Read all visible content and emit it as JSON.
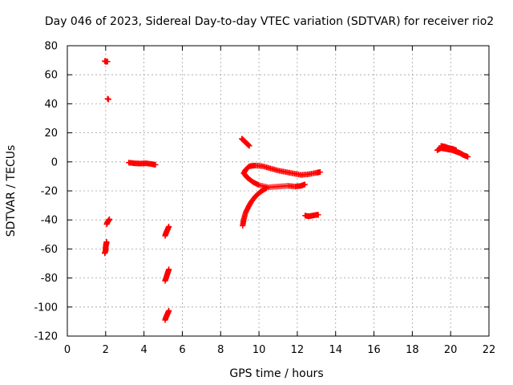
{
  "chart_data": {
    "type": "scatter",
    "title": "Day 046 of 2023, Sidereal Day-to-day VTEC variation (SDTVAR) for receiver rio2",
    "xlabel": "GPS time / hours",
    "ylabel": "SDTVAR / TECUs",
    "xlim": [
      0,
      22
    ],
    "ylim": [
      -120,
      80
    ],
    "xticks": [
      0,
      2,
      4,
      6,
      8,
      10,
      12,
      14,
      16,
      18,
      20,
      22
    ],
    "yticks": [
      -120,
      -100,
      -80,
      -60,
      -40,
      -20,
      0,
      20,
      40,
      60,
      80
    ],
    "grid": true,
    "marker": "plus",
    "series": [
      {
        "color": "#ff0000",
        "segments": [
          {
            "x": [
              1.95,
              2.0,
              2.05,
              2.1
            ],
            "y": [
              69.5,
              69.0,
              69.2,
              69.0
            ]
          },
          {
            "x": [
              2.1,
              2.15
            ],
            "y": [
              43.5,
              43.0
            ]
          },
          {
            "x": [
              2.05,
              2.1,
              2.15,
              2.2
            ],
            "y": [
              -43.0,
              -41.5,
              -40.5,
              -39.5
            ]
          },
          {
            "x": [
              1.95,
              2.0,
              2.0,
              2.02,
              2.04,
              2.05
            ],
            "y": [
              -63.0,
              -61.0,
              -59.0,
              -57.0,
              -56.0,
              -55.0
            ]
          },
          {
            "x": [
              3.2,
              3.5,
              3.8,
              4.1,
              4.4,
              4.6
            ],
            "y": [
              -0.5,
              -1.0,
              -1.2,
              -1.0,
              -1.5,
              -2.0
            ]
          },
          {
            "x": [
              5.1,
              5.15,
              5.2,
              5.25,
              5.3
            ],
            "y": [
              -51.0,
              -49.0,
              -47.5,
              -46.0,
              -44.5
            ]
          },
          {
            "x": [
              5.1,
              5.15,
              5.2,
              5.25,
              5.3
            ],
            "y": [
              -82.0,
              -80.0,
              -78.0,
              -76.0,
              -74.0
            ]
          },
          {
            "x": [
              5.1,
              5.15,
              5.2,
              5.25,
              5.3
            ],
            "y": [
              -109.0,
              -107.0,
              -105.5,
              -104.0,
              -102.5
            ]
          },
          {
            "x": [
              9.1,
              9.2,
              9.3,
              9.4,
              9.5
            ],
            "y": [
              16.0,
              14.8,
              13.5,
              12.2,
              11.0
            ]
          },
          {
            "x": [
              9.2,
              9.3,
              9.5,
              9.8,
              10.2,
              10.6,
              11.0,
              11.4,
              11.8,
              12.2,
              12.6,
              13.0,
              13.2
            ],
            "y": [
              -8.0,
              -5.5,
              -3.0,
              -2.5,
              -3.0,
              -4.5,
              -6.0,
              -7.0,
              -8.0,
              -9.0,
              -8.5,
              -7.5,
              -7.0
            ]
          },
          {
            "x": [
              9.25,
              9.4,
              9.7,
              10.0,
              10.5,
              11.0,
              11.5,
              11.9,
              12.2,
              12.4
            ],
            "y": [
              -8.5,
              -11.0,
              -14.0,
              -16.0,
              -17.5,
              -17.0,
              -16.5,
              -17.0,
              -16.5,
              -15.5
            ]
          },
          {
            "x": [
              9.15,
              9.2,
              9.3,
              9.45,
              9.6,
              9.8,
              10.0,
              10.2,
              10.4
            ],
            "y": [
              -44.0,
              -40.0,
              -35.0,
              -31.0,
              -27.5,
              -24.0,
              -21.5,
              -19.5,
              -18.0
            ]
          },
          {
            "x": [
              12.4,
              12.6,
              12.8,
              13.0,
              13.1
            ],
            "y": [
              -37.0,
              -37.5,
              -37.0,
              -36.5,
              -36.5
            ]
          },
          {
            "x": [
              19.3,
              19.5,
              19.7,
              19.9,
              20.1,
              20.3,
              20.5,
              20.7,
              20.9
            ],
            "y": [
              8.0,
              9.5,
              9.0,
              8.5,
              8.0,
              7.0,
              6.0,
              4.5,
              3.5
            ]
          },
          {
            "x": [
              19.5,
              19.7,
              19.9,
              20.1,
              20.3
            ],
            "y": [
              11.0,
              10.5,
              9.5,
              9.0,
              8.0
            ]
          }
        ]
      }
    ]
  }
}
